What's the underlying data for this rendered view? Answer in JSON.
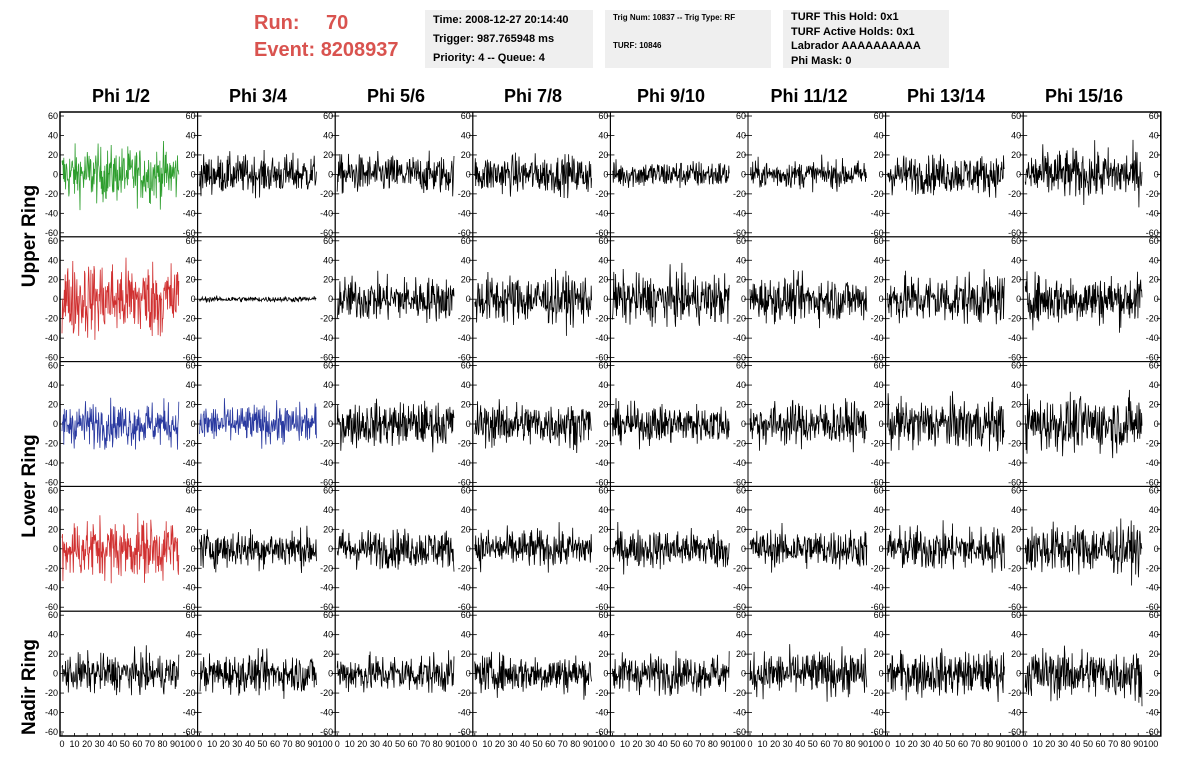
{
  "run": {
    "run_label": "Run:",
    "run_value": "70",
    "event_label": "Event:",
    "event_value": "8208937"
  },
  "info_time": {
    "time": "Time: 2008-12-27 20:14:40",
    "trigger": "Trigger: 987.765948 ms",
    "priority": "Priority: 4 -- Queue: 4"
  },
  "info_trig": {
    "trig": "Trig Num: 10837 -- Trig Type: RF",
    "turf": "TURF: 10846"
  },
  "info_turf": {
    "hold": "TURF This Hold: 0x1",
    "active": "TURF Active Holds: 0x1",
    "labrador": "Labrador AAAAAAAAAA",
    "phimask": "Phi Mask: 0"
  },
  "columns": [
    "Phi 1/2",
    "Phi 3/4",
    "Phi 5/6",
    "Phi 7/8",
    "Phi 9/10",
    "Phi 11/12",
    "Phi 13/14",
    "Phi 15/16"
  ],
  "ring_labels": [
    "Upper Ring",
    "Lower Ring",
    "Nadir Ring"
  ],
  "colors": {
    "green": "#2e9e2e",
    "red": "#d03030",
    "blue": "#2a3aa0",
    "black": "#000000",
    "run_text": "#d9534f"
  },
  "chart_data": {
    "type": "line",
    "description_grid": "5 rows x 8 columns of waveform panels",
    "xlim": [
      0,
      100
    ],
    "ylim": [
      -60,
      60
    ],
    "x_ticks": [
      "0",
      "10",
      "20",
      "30",
      "40",
      "50",
      "60",
      "70",
      "80",
      "90",
      "100"
    ],
    "y_ticks": [
      "-60",
      "-40",
      "-20",
      "0",
      "20",
      "40",
      "60"
    ],
    "panel_x_range": [
      0,
      100
    ],
    "panels": [
      [
        {
          "color": "green",
          "amp": 20
        },
        {
          "color": "black",
          "amp": 14
        },
        {
          "color": "black",
          "amp": 14
        },
        {
          "color": "black",
          "amp": 14
        },
        {
          "color": "black",
          "amp": 10
        },
        {
          "color": "black",
          "amp": 10
        },
        {
          "color": "black",
          "amp": 14
        },
        {
          "color": "black",
          "amp": 18
        }
      ],
      [
        {
          "color": "red",
          "amp": 28
        },
        {
          "color": "black",
          "amp": 2
        },
        {
          "color": "black",
          "amp": 16
        },
        {
          "color": "black",
          "amp": 18
        },
        {
          "color": "black",
          "amp": 18
        },
        {
          "color": "black",
          "amp": 16
        },
        {
          "color": "black",
          "amp": 18
        },
        {
          "color": "black",
          "amp": 18
        }
      ],
      [
        {
          "color": "blue",
          "amp": 16
        },
        {
          "color": "blue",
          "amp": 14
        },
        {
          "color": "black",
          "amp": 16
        },
        {
          "color": "black",
          "amp": 16
        },
        {
          "color": "black",
          "amp": 14
        },
        {
          "color": "black",
          "amp": 16
        },
        {
          "color": "black",
          "amp": 18
        },
        {
          "color": "black",
          "amp": 20
        }
      ],
      [
        {
          "color": "red",
          "amp": 22
        },
        {
          "color": "black",
          "amp": 14
        },
        {
          "color": "black",
          "amp": 14
        },
        {
          "color": "black",
          "amp": 14
        },
        {
          "color": "black",
          "amp": 14
        },
        {
          "color": "black",
          "amp": 14
        },
        {
          "color": "black",
          "amp": 16
        },
        {
          "color": "black",
          "amp": 18
        }
      ],
      [
        {
          "color": "black",
          "amp": 14
        },
        {
          "color": "black",
          "amp": 14
        },
        {
          "color": "black",
          "amp": 14
        },
        {
          "color": "black",
          "amp": 14
        },
        {
          "color": "black",
          "amp": 14
        },
        {
          "color": "black",
          "amp": 16
        },
        {
          "color": "black",
          "amp": 16
        },
        {
          "color": "black",
          "amp": 18
        }
      ]
    ]
  }
}
